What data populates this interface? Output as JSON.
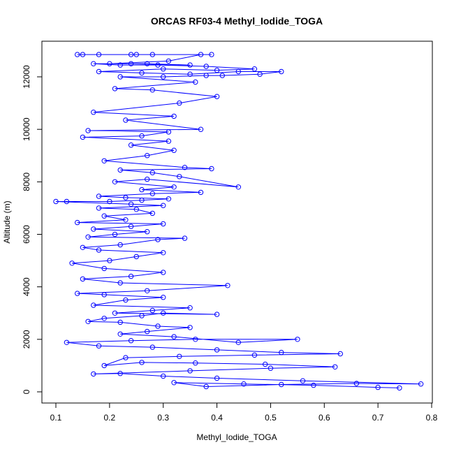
{
  "chart_data": {
    "type": "line",
    "title": "ORCAS RF03-4 Methyl_Iodide_TOGA",
    "xlabel": "Methyl_Iodide_TOGA",
    "ylabel": "Altitude (m)",
    "xlim": [
      0.1,
      0.8
    ],
    "ylim": [
      0,
      13000
    ],
    "x_ticks": [
      0.1,
      0.2,
      0.3,
      0.4,
      0.5,
      0.6,
      0.7,
      0.8
    ],
    "y_ticks": [
      0,
      2000,
      4000,
      6000,
      8000,
      10000,
      12000
    ],
    "series": [
      {
        "color": "#0000ff",
        "marker": "open-circle",
        "points": [
          [
            0.74,
            150
          ],
          [
            0.7,
            170
          ],
          [
            0.58,
            250
          ],
          [
            0.45,
            300
          ],
          [
            0.32,
            350
          ],
          [
            0.38,
            200
          ],
          [
            0.52,
            280
          ],
          [
            0.66,
            320
          ],
          [
            0.78,
            300
          ],
          [
            0.56,
            420
          ],
          [
            0.4,
            520
          ],
          [
            0.3,
            600
          ],
          [
            0.22,
            700
          ],
          [
            0.17,
            680
          ],
          [
            0.35,
            800
          ],
          [
            0.5,
            900
          ],
          [
            0.62,
            950
          ],
          [
            0.49,
            1050
          ],
          [
            0.36,
            1100
          ],
          [
            0.26,
            1120
          ],
          [
            0.19,
            1000
          ],
          [
            0.23,
            1300
          ],
          [
            0.33,
            1350
          ],
          [
            0.47,
            1400
          ],
          [
            0.63,
            1450
          ],
          [
            0.52,
            1500
          ],
          [
            0.4,
            1600
          ],
          [
            0.28,
            1700
          ],
          [
            0.18,
            1750
          ],
          [
            0.12,
            1880
          ],
          [
            0.24,
            1950
          ],
          [
            0.36,
            2000
          ],
          [
            0.55,
            2000
          ],
          [
            0.44,
            1880
          ],
          [
            0.32,
            2100
          ],
          [
            0.22,
            2200
          ],
          [
            0.27,
            2300
          ],
          [
            0.35,
            2450
          ],
          [
            0.29,
            2500
          ],
          [
            0.22,
            2650
          ],
          [
            0.16,
            2680
          ],
          [
            0.19,
            2800
          ],
          [
            0.26,
            2900
          ],
          [
            0.3,
            3000
          ],
          [
            0.4,
            2950
          ],
          [
            0.21,
            3000
          ],
          [
            0.28,
            3100
          ],
          [
            0.35,
            3200
          ],
          [
            0.17,
            3300
          ],
          [
            0.23,
            3500
          ],
          [
            0.3,
            3600
          ],
          [
            0.19,
            3700
          ],
          [
            0.14,
            3750
          ],
          [
            0.27,
            3850
          ],
          [
            0.42,
            4050
          ],
          [
            0.22,
            4150
          ],
          [
            0.15,
            4300
          ],
          [
            0.24,
            4400
          ],
          [
            0.3,
            4550
          ],
          [
            0.19,
            4700
          ],
          [
            0.13,
            4900
          ],
          [
            0.2,
            5000
          ],
          [
            0.25,
            5150
          ],
          [
            0.3,
            5300
          ],
          [
            0.18,
            5400
          ],
          [
            0.15,
            5500
          ],
          [
            0.22,
            5600
          ],
          [
            0.29,
            5800
          ],
          [
            0.34,
            5850
          ],
          [
            0.16,
            5900
          ],
          [
            0.21,
            6000
          ],
          [
            0.27,
            6100
          ],
          [
            0.17,
            6200
          ],
          [
            0.24,
            6300
          ],
          [
            0.3,
            6400
          ],
          [
            0.14,
            6450
          ],
          [
            0.23,
            6550
          ],
          [
            0.19,
            6700
          ],
          [
            0.28,
            6800
          ],
          [
            0.25,
            6950
          ],
          [
            0.18,
            7000
          ],
          [
            0.3,
            7100
          ],
          [
            0.24,
            7150
          ],
          [
            0.1,
            7250
          ],
          [
            0.12,
            7250
          ],
          [
            0.2,
            7250
          ],
          [
            0.26,
            7300
          ],
          [
            0.31,
            7350
          ],
          [
            0.23,
            7400
          ],
          [
            0.18,
            7450
          ],
          [
            0.28,
            7550
          ],
          [
            0.37,
            7600
          ],
          [
            0.26,
            7700
          ],
          [
            0.32,
            7800
          ],
          [
            0.21,
            8000
          ],
          [
            0.27,
            8100
          ],
          [
            0.44,
            7800
          ],
          [
            0.33,
            8200
          ],
          [
            0.28,
            8350
          ],
          [
            0.22,
            8450
          ],
          [
            0.39,
            8500
          ],
          [
            0.34,
            8550
          ],
          [
            0.19,
            8800
          ],
          [
            0.27,
            9000
          ],
          [
            0.32,
            9200
          ],
          [
            0.24,
            9400
          ],
          [
            0.31,
            9550
          ],
          [
            0.15,
            9700
          ],
          [
            0.26,
            9750
          ],
          [
            0.31,
            9900
          ],
          [
            0.16,
            9950
          ],
          [
            0.37,
            10000
          ],
          [
            0.23,
            10350
          ],
          [
            0.32,
            10500
          ],
          [
            0.17,
            10650
          ],
          [
            0.33,
            11000
          ],
          [
            0.4,
            11250
          ],
          [
            0.28,
            11500
          ],
          [
            0.21,
            11550
          ],
          [
            0.36,
            11800
          ],
          [
            0.22,
            12000
          ],
          [
            0.3,
            12000
          ],
          [
            0.38,
            12050
          ],
          [
            0.41,
            12050
          ],
          [
            0.48,
            12100
          ],
          [
            0.52,
            12200
          ],
          [
            0.44,
            12200
          ],
          [
            0.35,
            12100
          ],
          [
            0.26,
            12150
          ],
          [
            0.18,
            12200
          ],
          [
            0.3,
            12300
          ],
          [
            0.4,
            12250
          ],
          [
            0.47,
            12300
          ],
          [
            0.38,
            12400
          ],
          [
            0.29,
            12450
          ],
          [
            0.22,
            12450
          ],
          [
            0.17,
            12500
          ],
          [
            0.27,
            12500
          ],
          [
            0.35,
            12450
          ],
          [
            0.24,
            12500
          ],
          [
            0.2,
            12500
          ],
          [
            0.31,
            12600
          ],
          [
            0.37,
            12850
          ],
          [
            0.28,
            12850
          ],
          [
            0.24,
            12850
          ],
          [
            0.18,
            12850
          ],
          [
            0.14,
            12850
          ],
          [
            0.15,
            12850
          ],
          [
            0.25,
            12850
          ],
          [
            0.39,
            12850
          ]
        ]
      }
    ]
  }
}
